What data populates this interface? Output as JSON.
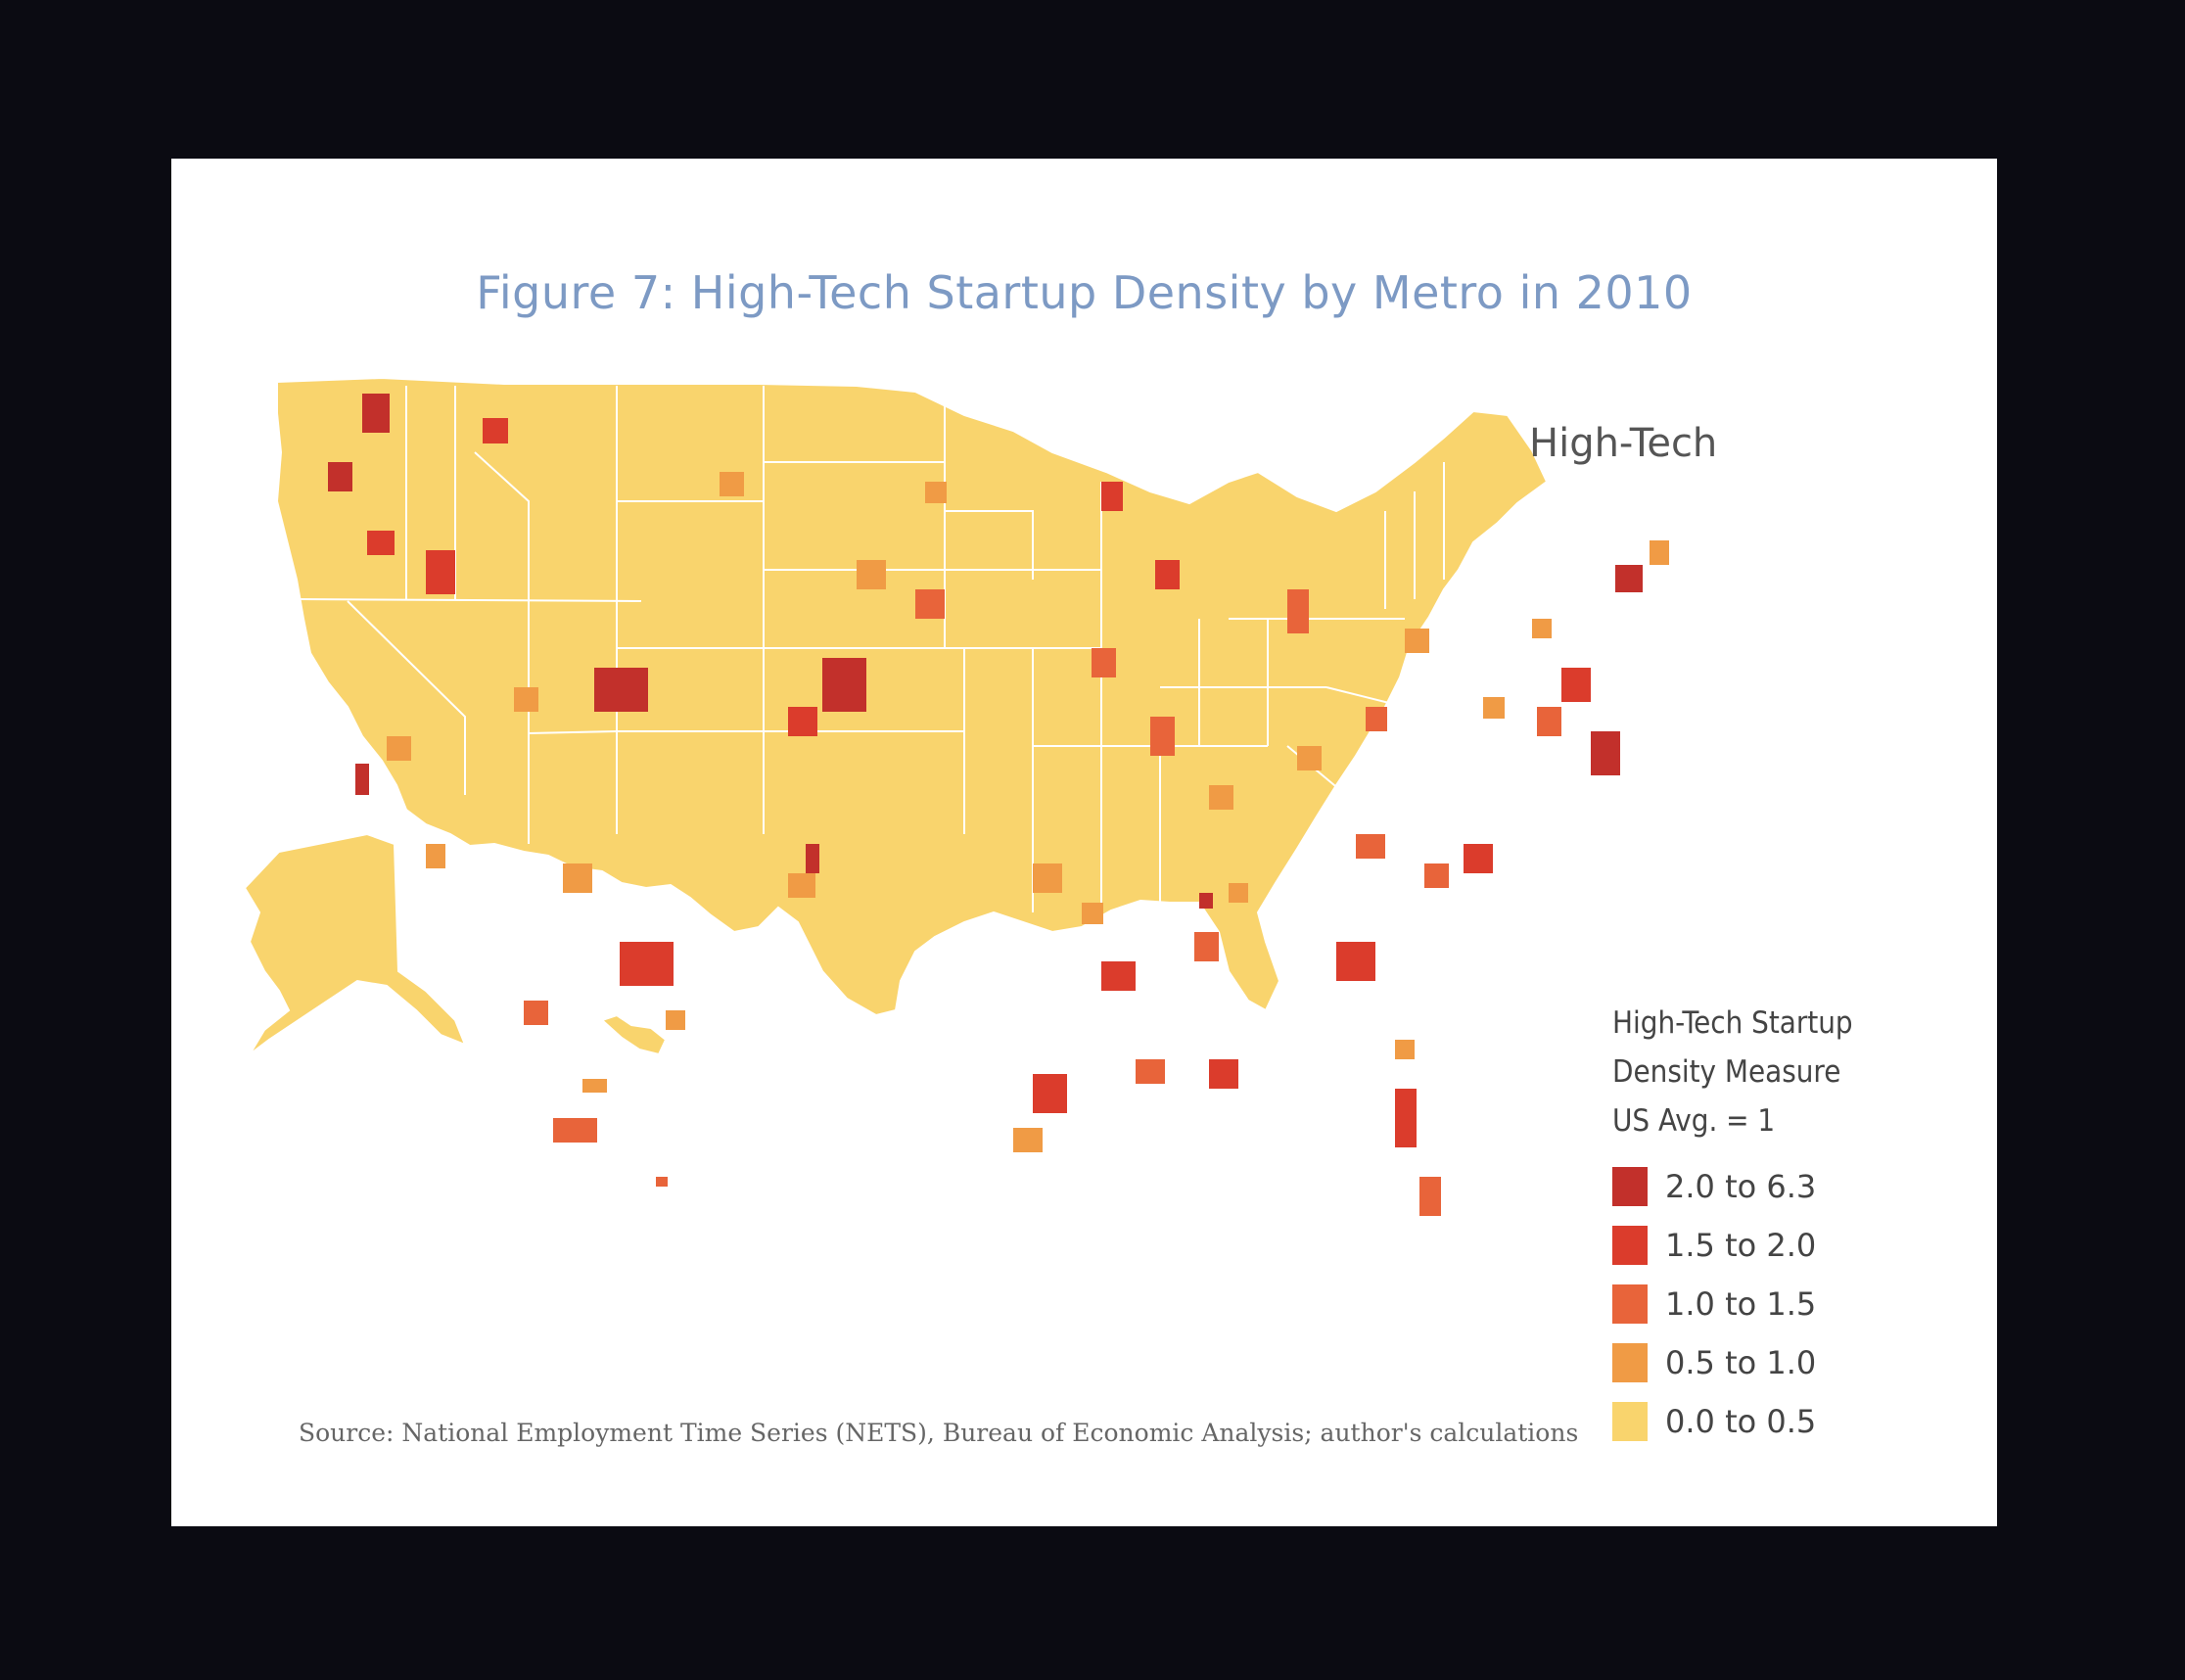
{
  "title": "Figure 7: High-Tech Startup Density by Metro in 2010",
  "map_label": "High-Tech",
  "legend": {
    "title_lines": [
      "High-Tech Startup",
      "Density Measure",
      "US Avg. = 1"
    ],
    "items": [
      {
        "label": "2.0 to 6.3",
        "color": "#c2302b"
      },
      {
        "label": "1.5 to 2.0",
        "color": "#db3c2c"
      },
      {
        "label": "1.0 to 1.5",
        "color": "#e8643a"
      },
      {
        "label": "0.5 to 1.0",
        "color": "#f09b45"
      },
      {
        "label": "0.0 to 0.5",
        "color": "#f9d46d"
      }
    ]
  },
  "source": "Source: National Employment Time Series (NETS), Bureau of Economic Analysis; author's calculations",
  "colors": {
    "base": "#f9d46d",
    "border": "#ffffff",
    "title": "#7d9ac4",
    "background": "#0b0b12"
  }
}
